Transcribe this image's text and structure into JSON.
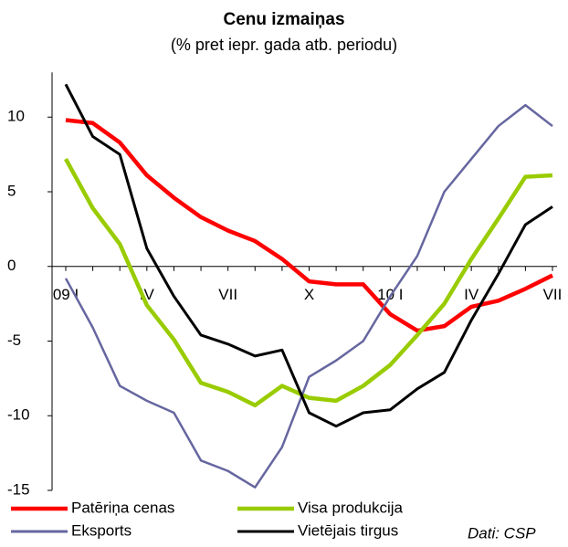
{
  "chart_data": {
    "type": "line",
    "title": "Cenu izmaiņas",
    "subtitle": "(% pret iepr. gada atb. periodu)",
    "annotation": "Dati: CSP",
    "categories": [
      "09 I",
      null,
      null,
      "IV",
      null,
      null,
      "VII",
      null,
      null,
      "X",
      null,
      null,
      "10 I",
      null,
      null,
      "IV",
      null,
      null,
      "VII"
    ],
    "series": [
      {
        "name": "Patēriņa cenas",
        "color": "#ff0000",
        "values": [
          9.8,
          9.6,
          8.3,
          6.1,
          4.6,
          3.3,
          2.4,
          1.7,
          0.5,
          -1.0,
          -1.2,
          -1.2,
          -3.2,
          -4.3,
          -4.0,
          -2.7,
          -2.3,
          -1.5,
          -0.6
        ]
      },
      {
        "name": "Visa produkcija",
        "color": "#99cc00",
        "values": [
          7.2,
          3.9,
          1.5,
          -2.6,
          -4.9,
          -7.8,
          -8.4,
          -9.3,
          -8.0,
          -8.8,
          -9.0,
          -8.0,
          -6.6,
          -4.6,
          -2.5,
          0.5,
          3.2,
          6.0,
          6.1
        ]
      },
      {
        "name": "Eksports",
        "color": "#6666a0",
        "values": [
          -0.8,
          -4.1,
          -8.0,
          -9.0,
          -9.8,
          -13.0,
          -13.7,
          -14.8,
          -12.1,
          -7.4,
          -6.3,
          -5.0,
          -2.0,
          0.7,
          5.0,
          7.2,
          9.4,
          10.8,
          9.4
        ]
      },
      {
        "name": "Vietējais tirgus",
        "color": "#000000",
        "values": [
          12.2,
          8.7,
          7.5,
          1.2,
          -2.0,
          -4.6,
          -5.2,
          -6.0,
          -5.6,
          -9.8,
          -10.7,
          -9.8,
          -9.6,
          -8.2,
          -7.1,
          -3.6,
          -0.5,
          2.8,
          4.0
        ]
      }
    ],
    "ylim": [
      -15,
      13
    ],
    "yticks": [
      -15,
      -10,
      -5,
      0,
      5,
      10
    ]
  }
}
